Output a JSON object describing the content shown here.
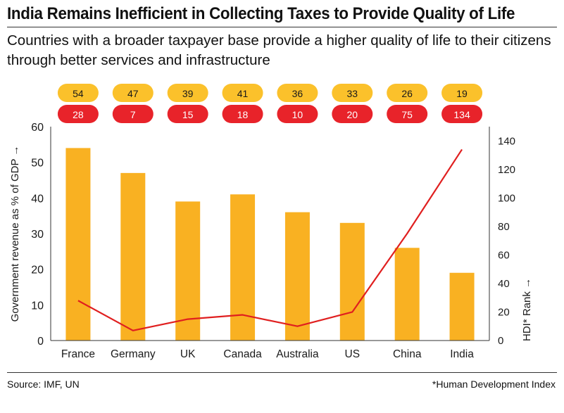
{
  "header": {
    "title": "India Remains Inefficient in Collecting Taxes to Provide Quality of Life",
    "subtitle": "Countries with a broader taxpayer base provide a higher quality of life to their citizens through better services and infrastructure"
  },
  "footer": {
    "source": "Source: IMF, UN",
    "footnote": "*Human Development Index"
  },
  "chart_data": {
    "type": "bar",
    "categories": [
      "France",
      "Germany",
      "UK",
      "Canada",
      "Australia",
      "US",
      "China",
      "India"
    ],
    "series": [
      {
        "name": "Government revenue as % of GDP",
        "kind": "bar",
        "axis": "left",
        "values": [
          54,
          47,
          39,
          41,
          36,
          33,
          26,
          19
        ]
      },
      {
        "name": "HDI* Rank",
        "kind": "line",
        "axis": "right",
        "values": [
          28,
          7,
          15,
          18,
          10,
          20,
          75,
          134
        ]
      }
    ],
    "ylabel": "Government revenue as % of GDP →",
    "y2label": "HDI* Rank →",
    "ylim": [
      0,
      60
    ],
    "y2lim": [
      0,
      150
    ],
    "yticks": [
      0,
      10,
      20,
      30,
      40,
      50,
      60
    ],
    "y2ticks": [
      0,
      20,
      40,
      60,
      80,
      100,
      120,
      140
    ],
    "grid": false,
    "colors": {
      "bar": "#f9b122",
      "line": "#e01f1f",
      "badge_revenue": "#fbc12b",
      "badge_rank": "#e8232a",
      "axis": "#333333"
    }
  }
}
